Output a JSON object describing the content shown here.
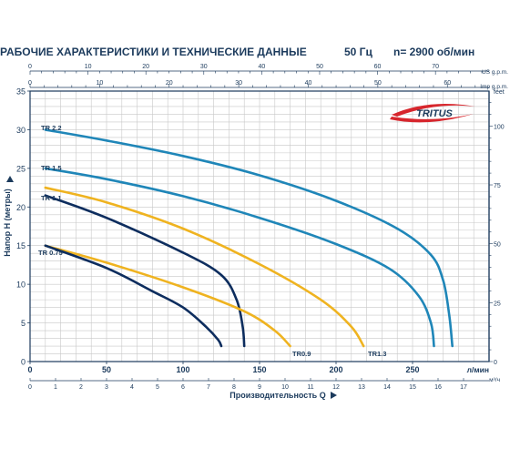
{
  "header": {
    "title": "РАБОЧИЕ ХАРАКТЕРИСТИКИ И ТЕХНИЧЕСКИЕ ДАННЫЕ",
    "frequency": "50 Гц",
    "speed": "n= 2900 об/мин"
  },
  "brand": {
    "name": "TRITUS",
    "colors": {
      "swoosh": "#d7262d",
      "text": "#1b3a5c"
    }
  },
  "colors": {
    "frame": "#1b3a5c",
    "grid": "#c8c8c8",
    "light_blue": "#1f86b8",
    "dark_navy": "#0d2d5e",
    "gold": "#efb320"
  },
  "chart_data": {
    "type": "line",
    "title": "РАБОЧИЕ ХАРАКТЕРИСТИКИ И ТЕХНИЧЕСКИЕ ДАННЫЕ",
    "xlabel": "Производительность Q",
    "ylabel": "Напор H  (метры)",
    "x_unit": "л/мин",
    "xlim": [
      0,
      300
    ],
    "ylim": [
      0,
      35
    ],
    "x_ticks": [
      0,
      50,
      100,
      150,
      200,
      250
    ],
    "y_ticks": [
      0,
      5,
      10,
      15,
      20,
      25,
      30,
      35
    ],
    "grid": true,
    "secondary_axes": {
      "top_us": {
        "label": "US g.p.m.",
        "ticks": [
          0,
          10,
          20,
          30,
          40,
          50,
          60,
          70
        ]
      },
      "top_imp": {
        "label": "Imp g.p.m.",
        "ticks": [
          0,
          10,
          20,
          30,
          40,
          50,
          60
        ]
      },
      "bottom_m3h": {
        "label": "м³/ч",
        "ticks": [
          0,
          1,
          2,
          3,
          4,
          5,
          6,
          7,
          8,
          9,
          10,
          11,
          12,
          13,
          14,
          15,
          16,
          17
        ]
      },
      "right_feet": {
        "label": "feet",
        "ticks": [
          0,
          25,
          50,
          75,
          100
        ]
      }
    },
    "series": [
      {
        "name": "TR 2.2",
        "color": "#1f86b8",
        "points": [
          [
            10,
            30
          ],
          [
            50,
            28.6
          ],
          [
            100,
            26.6
          ],
          [
            150,
            24.1
          ],
          [
            200,
            20.8
          ],
          [
            240,
            17.2
          ],
          [
            262,
            13.8
          ],
          [
            270,
            10.5
          ],
          [
            274,
            6
          ],
          [
            276,
            2
          ]
        ]
      },
      {
        "name": "TR 1.5",
        "color": "#1f86b8",
        "points": [
          [
            10,
            25
          ],
          [
            50,
            23.6
          ],
          [
            100,
            21.4
          ],
          [
            150,
            18.6
          ],
          [
            200,
            15.2
          ],
          [
            235,
            12
          ],
          [
            254,
            8.5
          ],
          [
            262,
            5
          ],
          [
            264,
            2
          ]
        ]
      },
      {
        "name": "TR 1.3",
        "color": "#efb320",
        "points": [
          [
            10,
            22.5
          ],
          [
            50,
            20.6
          ],
          [
            100,
            17.2
          ],
          [
            150,
            12.6
          ],
          [
            190,
            8
          ],
          [
            210,
            4.5
          ],
          [
            218,
            2
          ]
        ]
      },
      {
        "name": "TR 1.1",
        "color": "#0d2d5e",
        "points": [
          [
            10,
            21.5
          ],
          [
            50,
            18.6
          ],
          [
            100,
            14.1
          ],
          [
            125,
            11.2
          ],
          [
            135,
            8
          ],
          [
            139,
            4.5
          ],
          [
            140,
            2
          ]
        ]
      },
      {
        "name": "TR 0.9",
        "color": "#efb320",
        "points": [
          [
            10,
            15
          ],
          [
            50,
            12.8
          ],
          [
            100,
            9.6
          ],
          [
            140,
            6.5
          ],
          [
            160,
            4
          ],
          [
            170,
            2
          ]
        ]
      },
      {
        "name": "TR 0.75",
        "color": "#0d2d5e",
        "points": [
          [
            10,
            15
          ],
          [
            50,
            12.1
          ],
          [
            80,
            9.1
          ],
          [
            100,
            7
          ],
          [
            115,
            4.5
          ],
          [
            123,
            2.8
          ],
          [
            125,
            2
          ]
        ]
      }
    ]
  }
}
